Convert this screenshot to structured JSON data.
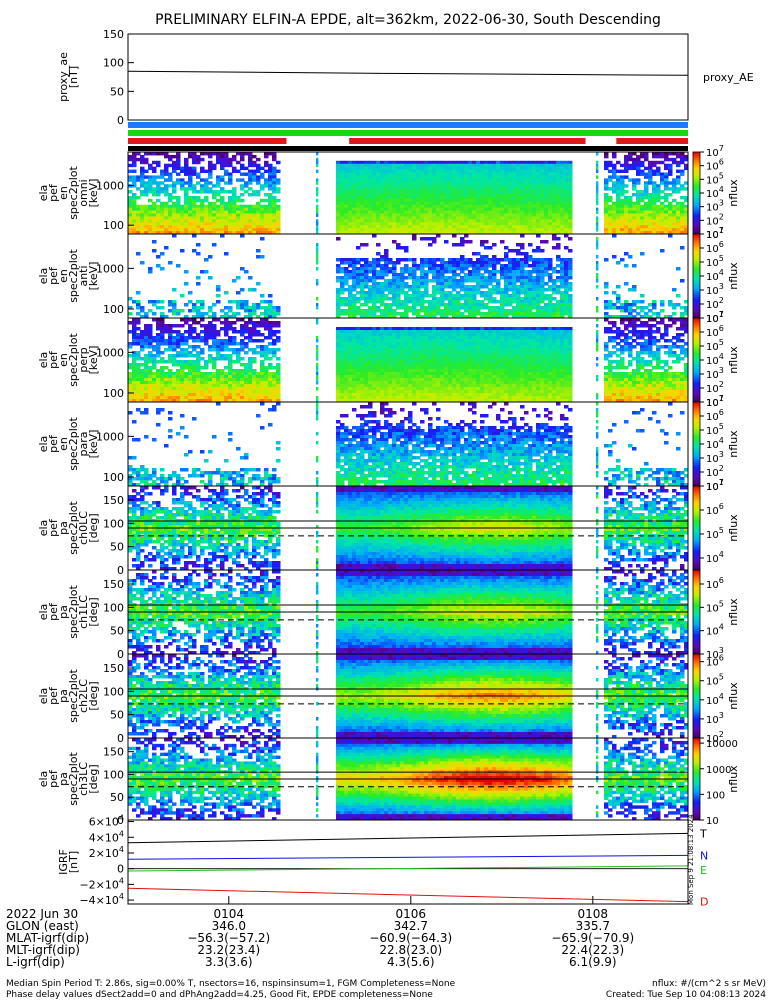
{
  "title": "PRELIMINARY ELFIN-A EPDE, alt=362km, 2022-06-30, South Descending",
  "colors": {
    "bar_blue": "#1e78ff",
    "bar_green": "#17d517",
    "bar_red": "#e01818",
    "bar_black": "#000000",
    "geo_T": "#000000",
    "geo_N": "#1010e0",
    "geo_E": "#22c022",
    "geo_D": "#e01010"
  },
  "chart_data": {
    "type": "heatmap",
    "panels": [
      {
        "id": "proxy_ae",
        "type": "line",
        "ylabel": "proxy_ae [nT]",
        "ylabel_lines": [
          "proxy_ae",
          "[nT]"
        ],
        "yticks": [
          "150",
          "100",
          "50",
          "0"
        ],
        "ylim": [
          0,
          150
        ],
        "legend": "proxy_AE",
        "x": [
          0,
          1
        ],
        "values": [
          85,
          78
        ]
      },
      {
        "id": "omni",
        "type": "heatmap",
        "ylabel_lines": [
          "ela",
          "pef",
          "en",
          "spec2plot",
          "omni",
          "[keV]"
        ],
        "yticks": [
          "1000",
          "100"
        ],
        "ylim": [
          60,
          7000
        ],
        "yscale": "log",
        "colorbar_label": "nflux",
        "colorbar_ticks": [
          "10^7",
          "10^6",
          "10^5",
          "10^4",
          "10^3",
          "10^2",
          "10^1"
        ],
        "colorbar_range": [
          1,
          7
        ]
      },
      {
        "id": "anti",
        "type": "heatmap",
        "ylabel_lines": [
          "ela",
          "pef",
          "en",
          "spec2plot",
          "anti",
          "[keV]"
        ],
        "yticks": [
          "1000",
          "100"
        ],
        "ylim": [
          60,
          7000
        ],
        "yscale": "log",
        "colorbar_label": "nflux",
        "colorbar_ticks": [
          "10^7",
          "10^6",
          "10^5",
          "10^4",
          "10^3",
          "10^2",
          "10^1"
        ],
        "colorbar_range": [
          1,
          7
        ]
      },
      {
        "id": "perp",
        "type": "heatmap",
        "ylabel_lines": [
          "ela",
          "pef",
          "en",
          "spec2plot",
          "perp",
          "[keV]"
        ],
        "yticks": [
          "1000",
          "100"
        ],
        "ylim": [
          60,
          7000
        ],
        "yscale": "log",
        "colorbar_label": "nflux",
        "colorbar_ticks": [
          "10^7",
          "10^6",
          "10^5",
          "10^4",
          "10^3",
          "10^2",
          "10^1"
        ],
        "colorbar_range": [
          1,
          7
        ]
      },
      {
        "id": "para",
        "type": "heatmap",
        "ylabel_lines": [
          "ela",
          "pef",
          "en",
          "spec2plot",
          "para",
          "[keV]"
        ],
        "yticks": [
          "1000",
          "100"
        ],
        "ylim": [
          60,
          7000
        ],
        "yscale": "log",
        "colorbar_label": "nflux",
        "colorbar_ticks": [
          "10^7",
          "10^6",
          "10^5",
          "10^4",
          "10^3",
          "10^2",
          "10^1"
        ],
        "colorbar_range": [
          1,
          7
        ]
      },
      {
        "id": "ch0LC",
        "type": "heatmap",
        "ylabel_lines": [
          "ela",
          "pef",
          "pa",
          "spec2plot",
          "ch0LC",
          "[deg]"
        ],
        "yticks": [
          "150",
          "100",
          "50",
          "0"
        ],
        "ylim": [
          0,
          180
        ],
        "colorbar_label": "nflux",
        "colorbar_ticks": [
          "10^7",
          "10^6",
          "10^5",
          "10^4"
        ],
        "colorbar_range": [
          3.5,
          7
        ]
      },
      {
        "id": "ch1LC",
        "type": "heatmap",
        "ylabel_lines": [
          "ela",
          "pef",
          "pa",
          "spec2plot",
          "ch1LC",
          "[deg]"
        ],
        "yticks": [
          "150",
          "100",
          "50",
          "0"
        ],
        "ylim": [
          0,
          180
        ],
        "colorbar_label": "nflux",
        "colorbar_ticks": [
          "10^6",
          "10^5",
          "10^4",
          "10^3"
        ],
        "colorbar_range": [
          3,
          6.6
        ]
      },
      {
        "id": "ch2LC",
        "type": "heatmap",
        "ylabel_lines": [
          "ela",
          "pef",
          "pa",
          "spec2plot",
          "ch2LC",
          "[deg]"
        ],
        "yticks": [
          "150",
          "100",
          "50",
          "0"
        ],
        "ylim": [
          0,
          180
        ],
        "colorbar_label": "nflux",
        "colorbar_ticks": [
          "10^6",
          "10^5",
          "10^4",
          "10^3",
          "10^2"
        ],
        "colorbar_range": [
          2,
          6.4
        ]
      },
      {
        "id": "ch3LC",
        "type": "heatmap",
        "ylabel_lines": [
          "ela",
          "pef",
          "pa",
          "spec2plot",
          "ch3LC",
          "[deg]"
        ],
        "yticks": [
          "150",
          "100",
          "50",
          "0"
        ],
        "ylim": [
          0,
          180
        ],
        "colorbar_label": "nflux",
        "colorbar_ticks": [
          "10000",
          "1000",
          "100",
          "10"
        ],
        "colorbar_range": [
          1,
          4.2
        ]
      },
      {
        "id": "igrf",
        "type": "line",
        "ylabel_lines": [
          "IGRF",
          "[nT]"
        ],
        "yticks": [
          "6×10^4",
          "4×10^4",
          "2×10^4",
          "0",
          "−2×10^4",
          "−4×10^4"
        ],
        "ylim": [
          -45000,
          62000
        ],
        "series": [
          {
            "name": "T",
            "values": [
              33000,
              45000
            ]
          },
          {
            "name": "N",
            "values": [
              12000,
              17000
            ]
          },
          {
            "name": "E",
            "values": [
              -3000,
              3500
            ]
          },
          {
            "name": "D",
            "values": [
              -25000,
              -42000
            ]
          }
        ]
      }
    ],
    "gaps": [
      [
        0.273,
        0.374
      ],
      [
        0.792,
        0.848
      ]
    ],
    "xaxis": {
      "date": "2022 Jun 30",
      "ticks": [
        "0104",
        "0106",
        "0108"
      ]
    },
    "rows": [
      {
        "label": "GLON (east)",
        "values": [
          "346.0",
          "342.7",
          "335.7"
        ]
      },
      {
        "label": "MLAT-igrf(dip)",
        "values": [
          "−56.3(−57.2)",
          "−60.9(−64.3)",
          "−65.9(−70.9)"
        ]
      },
      {
        "label": "MLT-igrf(dip)",
        "values": [
          "23.2(23.4)",
          "22.8(23.0)",
          "22.4(22.3)"
        ]
      },
      {
        "label": "L-igrf(dip)",
        "values": [
          "3.3(3.6)",
          "4.3(5.6)",
          "6.1(9.9)"
        ]
      }
    ]
  },
  "footer": {
    "line1": "Median Spin Period T: 2.86s, sig=0.00% T, nsectors=16, nspinsinsum=1, FGM Completeness=None",
    "line2": "Phase delay values dSect2add=0 and dPhAng2add=4.25, Good Fit, EPDE completeness=None",
    "units": "nflux: #/(cm^2 s sr MeV)",
    "created": "Created: Tue Sep 10 04:08:13 2024",
    "stamp": "Mon Sep  9 21:08:13 2024"
  }
}
